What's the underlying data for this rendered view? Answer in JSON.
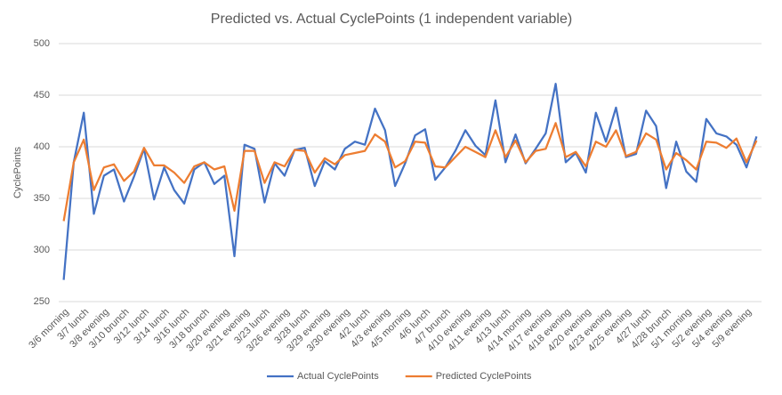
{
  "chart_data": {
    "type": "line",
    "title": "Predicted vs. Actual CyclePoints (1 independent variable)",
    "y_label": "CyclePoints",
    "categories": [
      "3/6 morning",
      null,
      "3/7 lunch",
      null,
      "3/8 evening",
      null,
      "3/10 brunch",
      null,
      "3/12 lunch",
      null,
      "3/14 lunch",
      null,
      "3/16 lunch",
      null,
      "3/18 brunch",
      null,
      "3/20 evening",
      null,
      "3/21 evening",
      null,
      "3/23 lunch",
      null,
      "3/26 evening",
      null,
      "3/28 lunch",
      null,
      "3/29 evening",
      null,
      "3/30 evening",
      null,
      "4/2 lunch",
      null,
      "4/3 evening",
      null,
      "4/5 morning",
      null,
      "4/6 lunch",
      null,
      "4/7 brunch",
      null,
      "4/10 evening",
      null,
      "4/11 evening",
      null,
      "4/13 lunch",
      null,
      "4/14 morning",
      null,
      "4/17 evening",
      null,
      "4/18 evening",
      null,
      "4/20 evening",
      null,
      "4/23 evening",
      null,
      "4/25 evening",
      null,
      "4/27 lunch",
      null,
      "4/28 brunch",
      null,
      "5/1 morning",
      null,
      "5/2 evening",
      null,
      "5/4 evening",
      null,
      "5/9 evening",
      null
    ],
    "series": [
      {
        "name": "Actual CyclePoints",
        "color": "#4472c4",
        "values": [
          271,
          385,
          433,
          335,
          372,
          378,
          347,
          371,
          398,
          349,
          380,
          358,
          345,
          378,
          385,
          364,
          372,
          294,
          402,
          398,
          346,
          384,
          372,
          397,
          399,
          362,
          386,
          378,
          398,
          405,
          402,
          437,
          416,
          362,
          384,
          411,
          417,
          368,
          380,
          396,
          416,
          401,
          392,
          445,
          385,
          412,
          384,
          398,
          413,
          461,
          385,
          394,
          375,
          433,
          405,
          438,
          390,
          393,
          435,
          420,
          360,
          405,
          376,
          366,
          427,
          413,
          410,
          402,
          380,
          410
        ]
      },
      {
        "name": "Predicted CyclePoints",
        "color": "#ed7d31",
        "values": [
          328,
          385,
          407,
          358,
          380,
          383,
          367,
          376,
          399,
          382,
          382,
          375,
          365,
          381,
          385,
          378,
          381,
          338,
          396,
          396,
          365,
          385,
          381,
          397,
          396,
          375,
          389,
          383,
          392,
          394,
          396,
          412,
          405,
          380,
          386,
          405,
          404,
          381,
          380,
          390,
          400,
          395,
          390,
          416,
          390,
          406,
          385,
          396,
          398,
          423,
          390,
          395,
          381,
          405,
          400,
          416,
          391,
          395,
          413,
          407,
          378,
          394,
          387,
          378,
          405,
          404,
          399,
          408,
          385,
          406
        ]
      }
    ],
    "ylim": [
      250,
      500
    ],
    "yticks": [
      250,
      300,
      350,
      400,
      450,
      500
    ],
    "grid": true,
    "legend": "bottom"
  }
}
